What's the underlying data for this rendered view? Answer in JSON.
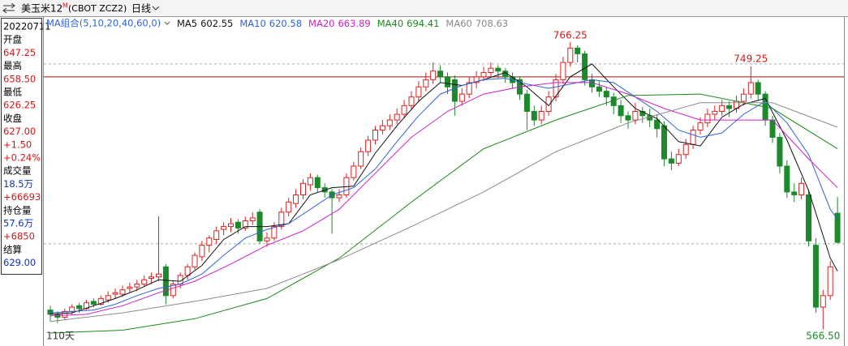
{
  "header": {
    "symbol": "美玉米12",
    "main_mark": "M",
    "code": "(CBOT ZCZ2)",
    "period": "日线"
  },
  "info_panel": [
    {
      "text": "20220711",
      "color": "#000000"
    },
    {
      "text": "开盘",
      "color": "#000000"
    },
    {
      "text": "647.25",
      "color": "#d01818"
    },
    {
      "text": "最高",
      "color": "#000000"
    },
    {
      "text": "658.50",
      "color": "#d01818"
    },
    {
      "text": "最低",
      "color": "#000000"
    },
    {
      "text": "626.25",
      "color": "#d01818"
    },
    {
      "text": "收盘",
      "color": "#000000"
    },
    {
      "text": "627.00",
      "color": "#d01818"
    },
    {
      "text": "+1.50",
      "color": "#d01818"
    },
    {
      "text": "+0.24%",
      "color": "#d01818"
    },
    {
      "text": "成交量",
      "color": "#000000"
    },
    {
      "text": "18.5万",
      "color": "#1030c0"
    },
    {
      "text": "+66693",
      "color": "#d01818"
    },
    {
      "text": "持仓量",
      "color": "#000000"
    },
    {
      "text": "57.6万",
      "color": "#1030c0"
    },
    {
      "text": "+6850",
      "color": "#d01818"
    },
    {
      "text": "结算",
      "color": "#000000"
    },
    {
      "text": "629.00",
      "color": "#1030c0"
    }
  ],
  "chart_data": {
    "type": "candlestick",
    "ma_group": "MA组合(5,10,20,40,60,0)",
    "ylim": [
      555,
      783
    ],
    "up_color": "#e02020",
    "down_color": "#1a8a2a",
    "dashed_lines": [
      751,
      626
    ],
    "crosshair": {
      "value": 742,
      "color": "#a01010"
    },
    "annotations": [
      "766.25",
      "749.25",
      "566.50",
      "110天"
    ],
    "ohlc": [
      [
        580,
        583,
        572,
        577
      ],
      [
        577,
        579,
        571,
        575
      ],
      [
        575,
        581,
        573,
        579
      ],
      [
        579,
        584,
        577,
        582
      ],
      [
        583,
        585,
        578,
        581
      ],
      [
        581,
        587,
        580,
        585
      ],
      [
        586,
        588,
        582,
        584
      ],
      [
        584,
        590,
        583,
        588
      ],
      [
        587,
        593,
        585,
        590
      ],
      [
        591,
        595,
        588,
        592
      ],
      [
        591,
        597,
        589,
        594
      ],
      [
        595,
        599,
        592,
        596
      ],
      [
        596,
        601,
        593,
        598
      ],
      [
        598,
        604,
        596,
        601
      ],
      [
        602,
        606,
        598,
        603
      ],
      [
        603,
        645,
        600,
        605
      ],
      [
        610,
        612,
        584,
        590
      ],
      [
        590,
        600,
        588,
        598
      ],
      [
        598,
        606,
        595,
        604
      ],
      [
        604,
        612,
        601,
        610
      ],
      [
        610,
        620,
        608,
        618
      ],
      [
        617,
        628,
        614,
        625
      ],
      [
        625,
        632,
        620,
        630
      ],
      [
        629,
        638,
        626,
        635
      ],
      [
        636,
        641,
        632,
        638
      ],
      [
        638,
        644,
        634,
        640
      ],
      [
        641,
        643,
        633,
        637
      ],
      [
        637,
        645,
        635,
        642
      ],
      [
        642,
        648,
        639,
        644
      ],
      [
        648,
        650,
        626,
        628
      ],
      [
        628,
        634,
        624,
        630
      ],
      [
        630,
        641,
        628,
        638
      ],
      [
        638,
        651,
        636,
        648
      ],
      [
        648,
        658,
        645,
        655
      ],
      [
        654,
        664,
        651,
        660
      ],
      [
        660,
        671,
        657,
        668
      ],
      [
        667,
        675,
        663,
        672
      ],
      [
        672,
        674,
        662,
        665
      ],
      [
        665,
        668,
        658,
        662
      ],
      [
        662,
        664,
        633,
        658
      ],
      [
        658,
        664,
        655,
        660
      ],
      [
        660,
        675,
        658,
        672
      ],
      [
        672,
        683,
        670,
        680
      ],
      [
        680,
        693,
        678,
        690
      ],
      [
        690,
        701,
        687,
        698
      ],
      [
        698,
        708,
        695,
        705
      ],
      [
        705,
        712,
        702,
        708
      ],
      [
        708,
        716,
        705,
        712
      ],
      [
        712,
        720,
        709,
        716
      ],
      [
        716,
        726,
        713,
        722
      ],
      [
        722,
        732,
        719,
        728
      ],
      [
        728,
        739,
        725,
        735
      ],
      [
        735,
        745,
        732,
        740
      ],
      [
        740,
        752,
        737,
        746
      ],
      [
        746,
        750,
        738,
        742
      ],
      [
        742,
        745,
        730,
        735
      ],
      [
        740,
        743,
        715,
        725
      ],
      [
        725,
        734,
        722,
        730
      ],
      [
        730,
        742,
        727,
        738
      ],
      [
        738,
        746,
        734,
        742
      ],
      [
        742,
        749,
        739,
        745
      ],
      [
        745,
        752,
        742,
        748
      ],
      [
        748,
        750,
        741,
        746
      ],
      [
        746,
        748,
        738,
        742
      ],
      [
        742,
        745,
        734,
        738
      ],
      [
        740,
        742,
        726,
        730
      ],
      [
        730,
        733,
        705,
        718
      ],
      [
        718,
        722,
        708,
        712
      ],
      [
        712,
        722,
        709,
        718
      ],
      [
        718,
        732,
        715,
        728
      ],
      [
        728,
        744,
        725,
        740
      ],
      [
        740,
        756,
        737,
        752
      ],
      [
        752,
        766.25,
        749,
        762
      ],
      [
        762,
        764,
        752,
        758
      ],
      [
        758,
        760,
        736,
        740
      ],
      [
        740,
        744,
        731,
        735
      ],
      [
        735,
        739,
        728,
        732
      ],
      [
        732,
        735,
        722,
        728
      ],
      [
        728,
        731,
        716,
        722
      ],
      [
        722,
        726,
        710,
        715
      ],
      [
        715,
        718,
        706,
        712
      ],
      [
        712,
        724,
        709,
        718
      ],
      [
        718,
        721,
        710,
        715
      ],
      [
        715,
        720,
        707,
        712
      ],
      [
        712,
        716,
        700,
        706
      ],
      [
        708,
        711,
        680,
        685
      ],
      [
        685,
        690,
        677,
        682
      ],
      [
        682,
        692,
        680,
        688
      ],
      [
        688,
        699,
        685,
        695
      ],
      [
        695,
        708,
        692,
        705
      ],
      [
        705,
        714,
        702,
        710
      ],
      [
        710,
        720,
        707,
        716
      ],
      [
        716,
        722,
        712,
        718
      ],
      [
        718,
        726,
        715,
        722
      ],
      [
        722,
        725,
        714,
        720
      ],
      [
        720,
        729,
        717,
        725
      ],
      [
        725,
        734,
        722,
        730
      ],
      [
        730,
        749.25,
        727,
        738
      ],
      [
        738,
        740,
        726,
        730
      ],
      [
        730,
        732,
        708,
        712
      ],
      [
        712,
        715,
        696,
        700
      ],
      [
        700,
        703,
        675,
        680
      ],
      [
        680,
        684,
        658,
        662
      ],
      [
        662,
        668,
        655,
        660
      ],
      [
        660,
        672,
        657,
        668
      ],
      [
        660,
        664,
        624,
        628
      ],
      [
        625,
        630,
        578,
        582
      ],
      [
        582,
        594,
        566.5,
        590
      ],
      [
        590,
        614,
        587,
        610
      ],
      [
        647.25,
        658.5,
        626.25,
        627
      ]
    ],
    "ma_lines": [
      {
        "name": "MA5",
        "value": 602.55,
        "color": "#111111",
        "x": [
          0,
          3,
          6,
          9,
          12,
          15,
          18,
          21,
          24,
          27,
          30,
          33,
          36,
          39,
          42,
          45,
          48,
          51,
          54,
          57,
          60,
          63,
          66,
          69,
          72,
          75,
          78,
          81,
          84,
          87,
          90,
          93,
          96,
          99,
          102,
          105,
          108,
          109
        ],
        "values": [
          577,
          578,
          583,
          588,
          594,
          601,
          600,
          611,
          629,
          638,
          638,
          640,
          660,
          665,
          666,
          689,
          708,
          725,
          738,
          736,
          740,
          745,
          735,
          722,
          742,
          751,
          735,
          720,
          713,
          697,
          694,
          714,
          723,
          727,
          698,
          663,
          616,
          607
        ]
      },
      {
        "name": "MA10",
        "value": 620.58,
        "color": "#2f64d8",
        "x": [
          0,
          3,
          6,
          9,
          12,
          15,
          18,
          21,
          24,
          27,
          30,
          33,
          36,
          39,
          42,
          45,
          48,
          51,
          54,
          57,
          60,
          63,
          66,
          69,
          72,
          75,
          78,
          81,
          84,
          87,
          90,
          93,
          96,
          99,
          102,
          105,
          108,
          109
        ],
        "values": [
          578,
          579,
          580,
          584,
          590,
          595,
          598,
          605,
          618,
          630,
          636,
          640,
          650,
          660,
          665,
          678,
          697,
          715,
          730,
          736,
          740,
          741,
          737,
          734,
          737,
          740,
          738,
          728,
          718,
          705,
          700,
          703,
          716,
          725,
          710,
          688,
          650,
          643
        ]
      },
      {
        "name": "MA20",
        "value": 663.89,
        "color": "#d020c8",
        "x": [
          0,
          5,
          10,
          15,
          20,
          25,
          30,
          35,
          40,
          45,
          50,
          55,
          60,
          65,
          70,
          75,
          80,
          85,
          90,
          95,
          100,
          105,
          109
        ],
        "values": [
          576,
          577,
          583,
          592,
          600,
          612,
          625,
          635,
          650,
          675,
          700,
          718,
          730,
          735,
          738,
          738,
          730,
          720,
          712,
          712,
          712,
          685,
          665
        ]
      },
      {
        "name": "MA40",
        "value": 694.41,
        "color": "#1e8a1e",
        "x": [
          0,
          10,
          20,
          30,
          40,
          50,
          60,
          70,
          80,
          90,
          100,
          109
        ],
        "values": [
          564,
          566,
          574,
          588,
          616,
          655,
          692,
          712,
          729,
          730,
          720,
          692
        ]
      },
      {
        "name": "MA60",
        "value": 708.63,
        "color": "#8a8a8a",
        "x": [
          0,
          10,
          20,
          30,
          40,
          50,
          60,
          70,
          80,
          90,
          100,
          109
        ],
        "values": [
          572,
          578,
          586,
          595,
          615,
          638,
          662,
          690,
          710,
          724,
          724,
          707
        ]
      }
    ]
  }
}
